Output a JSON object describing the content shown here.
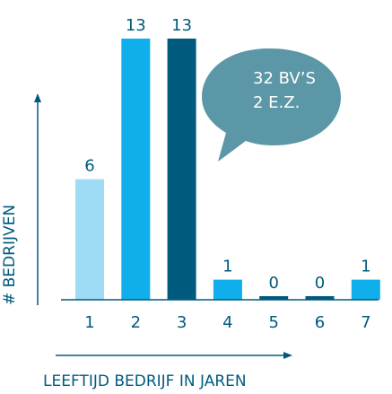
{
  "chart_data": {
    "type": "bar",
    "categories": [
      "1",
      "2",
      "3",
      "4",
      "5",
      "6",
      "7"
    ],
    "values": [
      6,
      13,
      13,
      1,
      0,
      0,
      1
    ],
    "data_labels": [
      "6",
      "13",
      "13",
      "1",
      "0",
      "0",
      "1"
    ],
    "xlabel": "LEEFTIJD BEDRIJF IN JAREN",
    "ylabel": "# BEDRIJVEN",
    "ylim": [
      0,
      13
    ],
    "grid": false,
    "legend": "none",
    "bar_colors": [
      "#9ddcf4",
      "#10aeea",
      "#005a7e",
      "#10aeea",
      "#005a7e",
      "#005a7e",
      "#10aeea"
    ],
    "annotation": {
      "line1": "32 BV’S",
      "line2": "2 E.Z."
    }
  },
  "colors": {
    "text": "#005a7e",
    "axis": "#005a7e",
    "bubble": "#5b97a6"
  }
}
